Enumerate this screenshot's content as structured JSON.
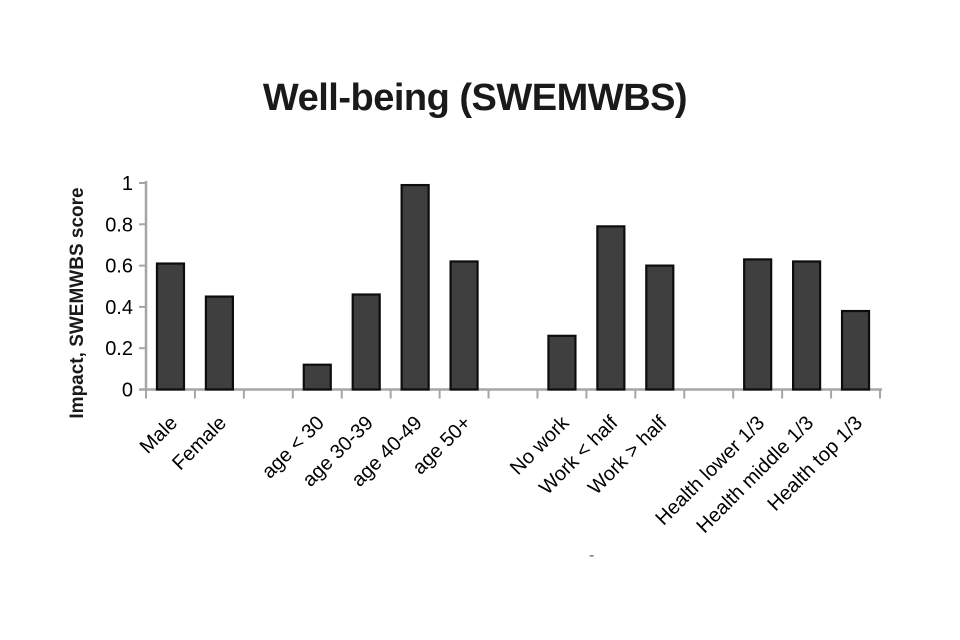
{
  "chart_data": {
    "type": "bar",
    "title": "Well-being (SWEMWBS)",
    "ylabel": "Impact, SWEMWBS score",
    "xlabel": "",
    "x_axis_dash": "-",
    "categories": [
      "Male",
      "Female",
      "age < 30",
      "age 30-39",
      "age 40-49",
      "age 50+",
      "No work",
      "Work < half",
      "Work > half",
      "Health lower 1/3",
      "Health middle 1/3",
      "Health top 1/3"
    ],
    "values": [
      0.61,
      0.45,
      0.12,
      0.46,
      0.99,
      0.62,
      0.26,
      0.79,
      0.6,
      0.63,
      0.62,
      0.38
    ],
    "slot_positions": [
      0,
      1,
      3,
      4,
      5,
      6,
      8,
      9,
      10,
      12,
      13,
      14
    ],
    "total_slots": 15,
    "ylim": [
      0,
      1
    ],
    "yticks": [
      0,
      0.2,
      0.4,
      0.6,
      0.8,
      1
    ],
    "ytick_labels": [
      "0",
      "0.2",
      "0.4",
      "0.6",
      "0.8",
      "1"
    ],
    "grid": false,
    "legend": false,
    "colors": {
      "bar_fill": "#3f3f3f",
      "bar_stroke": "#0d0d0d",
      "axis": "#a6a6a6",
      "text": "#000000",
      "background": "#ffffff"
    }
  }
}
